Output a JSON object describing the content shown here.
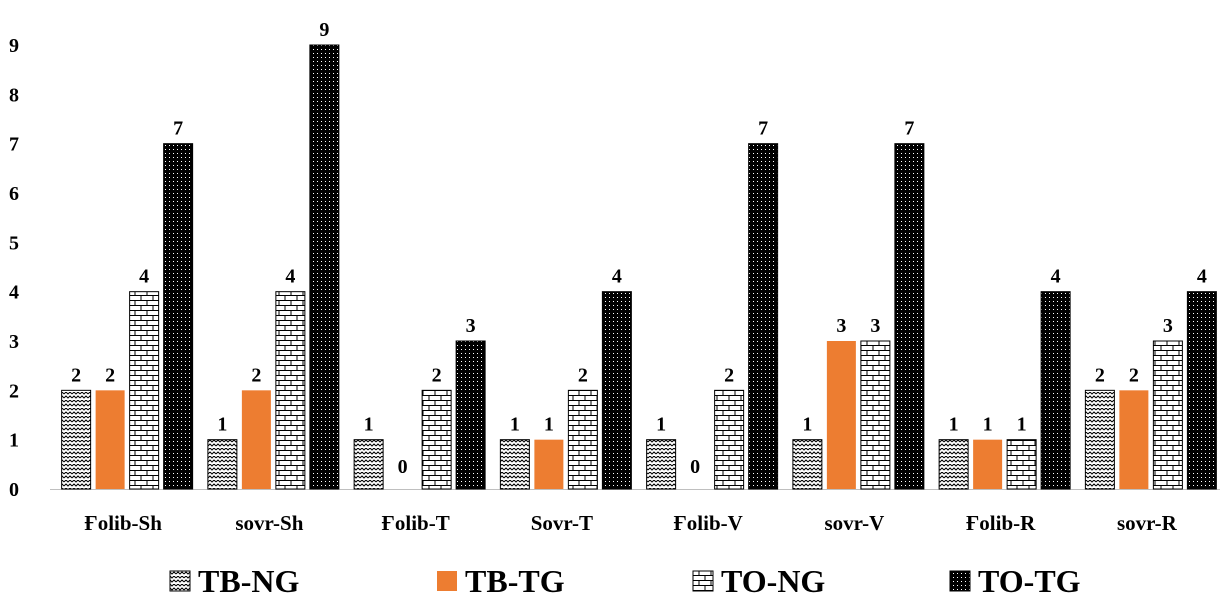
{
  "chart_data": {
    "type": "bar",
    "categories": [
      "Ғolib-Sh",
      "sovr-Sh",
      "Ғolib-T",
      "Sovr-T",
      "Ғolib-V",
      "sovr-V",
      "Ғolib-R",
      "sovr-R"
    ],
    "series": [
      {
        "name": "TB-NG",
        "values": [
          2,
          1,
          1,
          1,
          1,
          1,
          1,
          2
        ],
        "color": "#000000",
        "pattern": "zigzag"
      },
      {
        "name": "TB-TG",
        "values": [
          2,
          2,
          0,
          1,
          0,
          3,
          1,
          2
        ],
        "color": "#ed7d31",
        "pattern": "solid"
      },
      {
        "name": "TO-NG",
        "values": [
          4,
          4,
          2,
          2,
          2,
          3,
          1,
          3
        ],
        "color": "#000000",
        "pattern": "brick"
      },
      {
        "name": "TO-TG",
        "values": [
          7,
          9,
          3,
          4,
          7,
          7,
          4,
          4
        ],
        "color": "#000000",
        "pattern": "dotted-dark"
      }
    ],
    "y_ticks": [
      "0",
      "1",
      "2",
      "3",
      "4",
      "5",
      "6",
      "7",
      "8",
      "9"
    ],
    "ylim": [
      0,
      9
    ],
    "grid": false,
    "legend_position": "bottom",
    "data_labels": true
  }
}
